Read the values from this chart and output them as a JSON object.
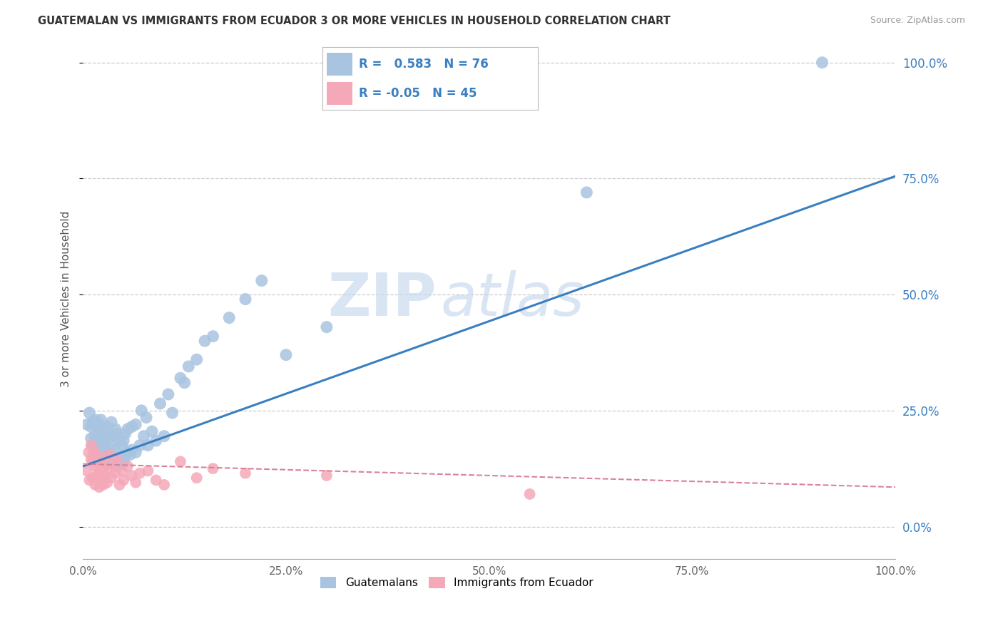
{
  "title": "GUATEMALAN VS IMMIGRANTS FROM ECUADOR 3 OR MORE VEHICLES IN HOUSEHOLD CORRELATION CHART",
  "source": "Source: ZipAtlas.com",
  "ylabel": "3 or more Vehicles in Household",
  "legend_label1": "Guatemalans",
  "legend_label2": "Immigrants from Ecuador",
  "R1": 0.583,
  "N1": 76,
  "R2": -0.05,
  "N2": 45,
  "color_blue": "#a8c4e0",
  "color_pink": "#f4a8b8",
  "color_line_blue": "#3a7fc1",
  "color_line_pink": "#d9829a",
  "watermark_text": "ZIP",
  "watermark_text2": "atlas",
  "xlim": [
    0.0,
    1.0
  ],
  "ylim": [
    -0.07,
    1.05
  ],
  "ytick_vals": [
    0.0,
    0.25,
    0.5,
    0.75,
    1.0
  ],
  "xtick_vals": [
    0.0,
    0.25,
    0.5,
    0.75,
    1.0
  ],
  "blue_trendline_x": [
    0.0,
    1.0
  ],
  "blue_trendline_y": [
    0.13,
    0.755
  ],
  "pink_trendline_x": [
    0.0,
    1.0
  ],
  "pink_trendline_y": [
    0.135,
    0.085
  ],
  "scatter_blue_x": [
    0.005,
    0.008,
    0.01,
    0.01,
    0.012,
    0.012,
    0.015,
    0.015,
    0.015,
    0.018,
    0.018,
    0.02,
    0.02,
    0.02,
    0.022,
    0.022,
    0.022,
    0.025,
    0.025,
    0.025,
    0.028,
    0.028,
    0.03,
    0.03,
    0.03,
    0.032,
    0.032,
    0.035,
    0.035,
    0.035,
    0.038,
    0.038,
    0.04,
    0.04,
    0.04,
    0.042,
    0.042,
    0.045,
    0.045,
    0.048,
    0.048,
    0.05,
    0.05,
    0.052,
    0.052,
    0.055,
    0.055,
    0.058,
    0.06,
    0.06,
    0.065,
    0.065,
    0.07,
    0.072,
    0.075,
    0.078,
    0.08,
    0.085,
    0.09,
    0.095,
    0.1,
    0.105,
    0.11,
    0.12,
    0.125,
    0.13,
    0.14,
    0.15,
    0.16,
    0.18,
    0.2,
    0.22,
    0.25,
    0.3,
    0.62,
    0.91
  ],
  "scatter_blue_y": [
    0.22,
    0.245,
    0.19,
    0.215,
    0.175,
    0.225,
    0.16,
    0.195,
    0.23,
    0.17,
    0.21,
    0.15,
    0.18,
    0.22,
    0.16,
    0.195,
    0.23,
    0.145,
    0.175,
    0.21,
    0.155,
    0.19,
    0.135,
    0.17,
    0.215,
    0.155,
    0.195,
    0.14,
    0.175,
    0.225,
    0.15,
    0.195,
    0.13,
    0.165,
    0.21,
    0.15,
    0.2,
    0.145,
    0.185,
    0.135,
    0.175,
    0.14,
    0.185,
    0.155,
    0.2,
    0.16,
    0.21,
    0.155,
    0.165,
    0.215,
    0.16,
    0.22,
    0.175,
    0.25,
    0.195,
    0.235,
    0.175,
    0.205,
    0.185,
    0.265,
    0.195,
    0.285,
    0.245,
    0.32,
    0.31,
    0.345,
    0.36,
    0.4,
    0.41,
    0.45,
    0.49,
    0.53,
    0.37,
    0.43,
    0.72,
    1.0
  ],
  "scatter_pink_x": [
    0.005,
    0.007,
    0.008,
    0.01,
    0.01,
    0.012,
    0.012,
    0.013,
    0.015,
    0.015,
    0.016,
    0.018,
    0.018,
    0.02,
    0.02,
    0.022,
    0.022,
    0.024,
    0.025,
    0.025,
    0.027,
    0.028,
    0.03,
    0.032,
    0.033,
    0.035,
    0.038,
    0.04,
    0.042,
    0.045,
    0.048,
    0.05,
    0.055,
    0.06,
    0.065,
    0.07,
    0.08,
    0.09,
    0.1,
    0.12,
    0.14,
    0.16,
    0.2,
    0.3,
    0.55
  ],
  "scatter_pink_y": [
    0.12,
    0.16,
    0.1,
    0.145,
    0.175,
    0.105,
    0.14,
    0.165,
    0.09,
    0.13,
    0.155,
    0.11,
    0.145,
    0.085,
    0.12,
    0.1,
    0.135,
    0.115,
    0.09,
    0.13,
    0.11,
    0.15,
    0.095,
    0.12,
    0.155,
    0.105,
    0.135,
    0.115,
    0.145,
    0.09,
    0.12,
    0.1,
    0.13,
    0.11,
    0.095,
    0.115,
    0.12,
    0.1,
    0.09,
    0.14,
    0.105,
    0.125,
    0.115,
    0.11,
    0.07
  ]
}
